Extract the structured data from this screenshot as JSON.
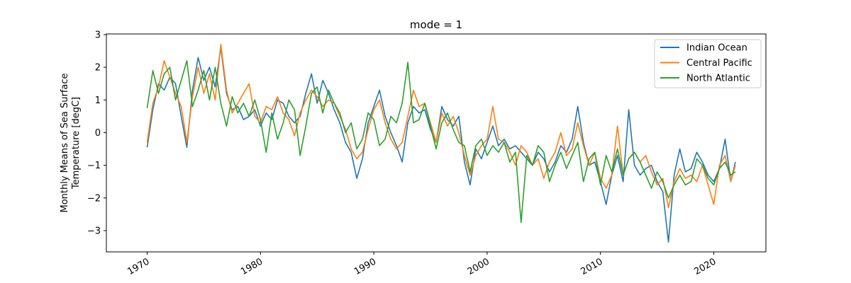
{
  "chart_data": {
    "type": "line",
    "title": "mode = 1",
    "xlabel": "",
    "ylabel_line1": "Monthly Means of Sea Surface",
    "ylabel_line2": "Temperature [degC]",
    "xlim": [
      1966.4,
      2024.6
    ],
    "ylim": [
      -3.65,
      3.02
    ],
    "xticks": [
      1970,
      1980,
      1990,
      2000,
      2010,
      2020
    ],
    "xtick_labels": [
      "1970",
      "1980",
      "1990",
      "2000",
      "2010",
      "2020"
    ],
    "yticks": [
      -3,
      -2,
      -1,
      0,
      1,
      2,
      3
    ],
    "ytick_labels": [
      "−3",
      "−2",
      "−1",
      "0",
      "1",
      "2",
      "3"
    ],
    "grid": false,
    "legend_position": "top-right",
    "colors": {
      "Indian Ocean": "#1f77b4",
      "Central Pacific": "#ff7f0e",
      "North Atlantic": "#2ca02c"
    },
    "series": [
      {
        "name": "Indian Ocean",
        "color": "#1f77b4",
        "x": [
          1970.0,
          1970.5,
          1971.0,
          1971.5,
          1972.0,
          1972.5,
          1973.0,
          1973.5,
          1974.0,
          1974.5,
          1975.0,
          1975.5,
          1976.0,
          1976.5,
          1977.0,
          1977.5,
          1978.0,
          1978.5,
          1979.0,
          1979.5,
          1980.0,
          1980.5,
          1981.0,
          1981.5,
          1982.0,
          1982.5,
          1983.0,
          1983.5,
          1984.0,
          1984.5,
          1985.0,
          1985.5,
          1986.0,
          1986.5,
          1987.0,
          1987.5,
          1988.0,
          1988.5,
          1989.0,
          1989.5,
          1990.0,
          1990.5,
          1991.0,
          1991.5,
          1992.0,
          1992.5,
          1993.0,
          1993.5,
          1994.0,
          1994.5,
          1995.0,
          1995.5,
          1996.0,
          1996.5,
          1997.0,
          1997.5,
          1998.0,
          1998.5,
          1999.0,
          1999.5,
          2000.0,
          2000.5,
          2001.0,
          2001.5,
          2002.0,
          2002.5,
          2003.0,
          2003.5,
          2004.0,
          2004.5,
          2005.0,
          2005.5,
          2006.0,
          2006.5,
          2007.0,
          2007.5,
          2008.0,
          2008.5,
          2009.0,
          2009.5,
          2010.0,
          2010.5,
          2011.0,
          2011.5,
          2012.0,
          2012.5,
          2013.0,
          2013.5,
          2014.0,
          2014.5,
          2015.0,
          2015.5,
          2016.0,
          2016.5,
          2017.0,
          2017.5,
          2018.0,
          2018.5,
          2019.0,
          2019.5,
          2020.0,
          2020.5,
          2021.0,
          2021.5,
          2021.9
        ],
        "y": [
          -0.45,
          0.7,
          1.5,
          1.3,
          1.7,
          1.5,
          0.5,
          -0.45,
          1.3,
          2.3,
          1.6,
          2.0,
          1.4,
          2.6,
          1.2,
          0.7,
          0.8,
          0.4,
          0.5,
          0.7,
          0.2,
          0.6,
          0.4,
          1.0,
          0.9,
          0.5,
          0.3,
          0.5,
          1.2,
          1.8,
          0.9,
          1.6,
          1.2,
          0.7,
          0.3,
          -0.3,
          -0.6,
          -1.4,
          -0.8,
          0.3,
          0.8,
          1.3,
          0.5,
          0.0,
          -0.4,
          -0.9,
          0.3,
          0.8,
          0.6,
          0.7,
          0.1,
          -0.3,
          0.8,
          0.4,
          0.2,
          0.5,
          -0.9,
          -1.6,
          -0.5,
          -0.8,
          -0.3,
          0.2,
          -0.4,
          -0.2,
          -0.5,
          -0.4,
          -0.6,
          -0.8,
          -1.0,
          -0.6,
          -0.8,
          -1.2,
          -0.9,
          -0.4,
          -0.6,
          -0.2,
          0.8,
          -0.3,
          -1.0,
          -0.9,
          -1.5,
          -2.2,
          -1.3,
          -0.7,
          -1.5,
          0.7,
          -1.0,
          -1.3,
          -1.1,
          -1.0,
          -1.5,
          -1.8,
          -3.35,
          -1.3,
          -0.5,
          -1.2,
          -1.1,
          -0.6,
          -0.9,
          -1.3,
          -1.5,
          -1.1,
          -0.2,
          -1.5,
          -0.9
        ]
      },
      {
        "name": "Central Pacific",
        "color": "#ff7f0e",
        "x": [
          1970.0,
          1970.5,
          1971.0,
          1971.5,
          1972.0,
          1972.5,
          1973.0,
          1973.5,
          1974.0,
          1974.5,
          1975.0,
          1975.5,
          1976.0,
          1976.5,
          1977.0,
          1977.5,
          1978.0,
          1978.5,
          1979.0,
          1979.5,
          1980.0,
          1980.5,
          1981.0,
          1981.5,
          1982.0,
          1982.5,
          1983.0,
          1983.5,
          1984.0,
          1984.5,
          1985.0,
          1985.5,
          1986.0,
          1986.5,
          1987.0,
          1987.5,
          1988.0,
          1988.5,
          1989.0,
          1989.5,
          1990.0,
          1990.5,
          1991.0,
          1991.5,
          1992.0,
          1992.5,
          1993.0,
          1993.5,
          1994.0,
          1994.5,
          1995.0,
          1995.5,
          1996.0,
          1996.5,
          1997.0,
          1997.5,
          1998.0,
          1998.5,
          1999.0,
          1999.5,
          2000.0,
          2000.5,
          2001.0,
          2001.5,
          2002.0,
          2002.5,
          2003.0,
          2003.5,
          2004.0,
          2004.5,
          2005.0,
          2005.5,
          2006.0,
          2006.5,
          2007.0,
          2007.5,
          2008.0,
          2008.5,
          2009.0,
          2009.5,
          2010.0,
          2010.5,
          2011.0,
          2011.5,
          2012.0,
          2012.5,
          2013.0,
          2013.5,
          2014.0,
          2014.5,
          2015.0,
          2015.5,
          2016.0,
          2016.5,
          2017.0,
          2017.5,
          2018.0,
          2018.5,
          2019.0,
          2019.5,
          2020.0,
          2020.5,
          2021.0,
          2021.5,
          2021.9
        ],
        "y": [
          -0.3,
          0.9,
          1.4,
          2.2,
          1.7,
          1.2,
          0.8,
          -0.3,
          1.1,
          2.0,
          1.2,
          1.8,
          1.0,
          2.7,
          1.3,
          0.6,
          0.9,
          1.2,
          1.5,
          0.5,
          0.3,
          0.8,
          0.7,
          1.1,
          0.6,
          0.4,
          -0.1,
          0.6,
          1.0,
          1.3,
          1.1,
          0.8,
          1.0,
          0.9,
          0.5,
          0.1,
          -0.5,
          -0.8,
          -0.6,
          0.1,
          0.7,
          1.0,
          0.3,
          -0.2,
          -0.5,
          -0.3,
          0.5,
          1.3,
          0.8,
          0.9,
          0.3,
          -0.3,
          0.6,
          0.2,
          0.5,
          0.0,
          -0.7,
          -1.3,
          -0.7,
          -0.4,
          -0.2,
          0.8,
          -0.2,
          -0.3,
          -0.6,
          -1.0,
          -0.4,
          -0.6,
          -1.0,
          -0.8,
          -1.4,
          -0.9,
          -0.6,
          0.0,
          -0.7,
          -0.5,
          0.3,
          -0.4,
          -1.0,
          -0.6,
          -1.4,
          -1.7,
          -1.3,
          0.2,
          -1.3,
          -0.8,
          -0.6,
          -0.9,
          -0.7,
          -1.2,
          -1.6,
          -1.4,
          -2.3,
          -1.5,
          -1.1,
          -1.4,
          -1.3,
          -1.5,
          -1.0,
          -1.6,
          -2.2,
          -1.0,
          -0.7,
          -1.5,
          -1.0
        ]
      },
      {
        "name": "North Atlantic",
        "color": "#2ca02c",
        "x": [
          1970.0,
          1970.5,
          1971.0,
          1971.5,
          1972.0,
          1972.5,
          1973.0,
          1973.5,
          1974.0,
          1974.5,
          1975.0,
          1975.5,
          1976.0,
          1976.5,
          1977.0,
          1977.5,
          1978.0,
          1978.5,
          1979.0,
          1979.5,
          1980.0,
          1980.5,
          1981.0,
          1981.5,
          1982.0,
          1982.5,
          1983.0,
          1983.5,
          1984.0,
          1984.5,
          1985.0,
          1985.5,
          1986.0,
          1986.5,
          1987.0,
          1987.5,
          1988.0,
          1988.5,
          1989.0,
          1989.5,
          1990.0,
          1990.5,
          1991.0,
          1991.5,
          1992.0,
          1992.5,
          1993.0,
          1993.5,
          1994.0,
          1994.5,
          1995.0,
          1995.5,
          1996.0,
          1996.5,
          1997.0,
          1997.5,
          1998.0,
          1998.5,
          1999.0,
          1999.5,
          2000.0,
          2000.5,
          2001.0,
          2001.5,
          2002.0,
          2002.5,
          2003.0,
          2003.5,
          2004.0,
          2004.5,
          2005.0,
          2005.5,
          2006.0,
          2006.5,
          2007.0,
          2007.5,
          2008.0,
          2008.5,
          2009.0,
          2009.5,
          2010.0,
          2010.5,
          2011.0,
          2011.5,
          2012.0,
          2012.5,
          2013.0,
          2013.5,
          2014.0,
          2014.5,
          2015.0,
          2015.5,
          2016.0,
          2016.5,
          2017.0,
          2017.5,
          2018.0,
          2018.5,
          2019.0,
          2019.5,
          2020.0,
          2020.5,
          2021.0,
          2021.5,
          2021.9
        ],
        "y": [
          0.75,
          1.9,
          1.2,
          1.8,
          2.0,
          1.0,
          1.6,
          2.2,
          0.8,
          1.3,
          1.9,
          1.0,
          2.0,
          0.9,
          0.2,
          1.1,
          0.6,
          0.9,
          0.5,
          1.0,
          0.4,
          -0.6,
          0.6,
          -0.2,
          0.3,
          1.0,
          0.7,
          -0.7,
          0.2,
          1.2,
          1.4,
          0.6,
          1.3,
          0.9,
          0.6,
          0.0,
          0.3,
          -0.5,
          -0.2,
          0.6,
          0.4,
          -0.4,
          -0.2,
          0.5,
          0.3,
          0.9,
          2.15,
          0.3,
          0.4,
          0.9,
          0.2,
          -0.5,
          0.3,
          0.6,
          0.1,
          -0.3,
          -0.4,
          -1.2,
          -0.4,
          -0.2,
          -0.7,
          -0.4,
          -0.6,
          -0.3,
          -0.9,
          -0.6,
          -2.75,
          -0.7,
          -1.0,
          -0.4,
          -0.6,
          -1.5,
          -1.0,
          -0.6,
          -1.1,
          -0.7,
          -0.3,
          -1.5,
          -0.8,
          -0.6,
          -1.6,
          -0.7,
          -1.2,
          -0.5,
          -1.3,
          -0.8,
          -0.6,
          -0.9,
          -1.3,
          -1.7,
          -1.2,
          -1.5,
          -2.0,
          -1.6,
          -1.3,
          -1.6,
          -1.5,
          -0.8,
          -1.0,
          -1.4,
          -1.6,
          -1.1,
          -0.9,
          -1.3,
          -1.2
        ]
      }
    ]
  }
}
